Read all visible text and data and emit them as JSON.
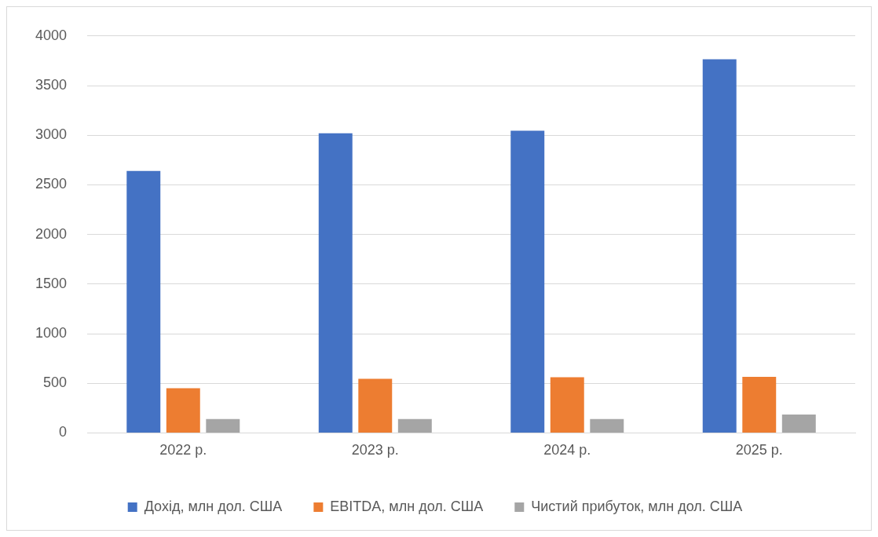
{
  "chart_data": {
    "type": "bar",
    "categories": [
      "2022 р.",
      "2023 р.",
      "2024 р.",
      "2025 р."
    ],
    "series": [
      {
        "name": "Дохід, млн дол. США",
        "color": "#4472c4",
        "values": [
          2640,
          3020,
          3045,
          3765
        ]
      },
      {
        "name": "EBITDA, млн дол. США",
        "color": "#ed7d31",
        "values": [
          450,
          545,
          560,
          565
        ]
      },
      {
        "name": "Чистий прибуток, млн дол. США",
        "color": "#a5a5a5",
        "values": [
          140,
          140,
          140,
          185
        ]
      }
    ],
    "ylim": [
      0,
      4000
    ],
    "yticks": [
      0,
      500,
      1000,
      1500,
      2000,
      2500,
      3000,
      3500,
      4000
    ],
    "grid": "y",
    "legend": "bottom"
  }
}
